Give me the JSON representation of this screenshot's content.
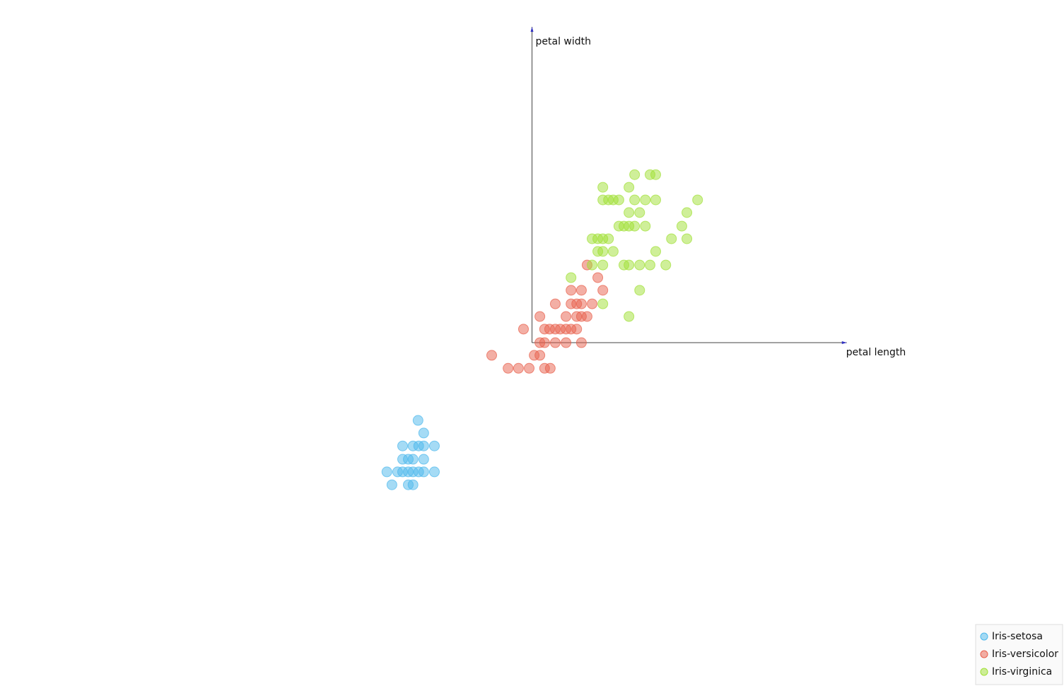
{
  "chart_data": {
    "type": "scatter",
    "xlim": [
      -1.69,
      1.69
    ],
    "ylim": [
      -1.087,
      1.085
    ],
    "anchors": [
      {
        "name": "petal length",
        "x": 1,
        "y": 0
      },
      {
        "name": "petal width",
        "x": 0,
        "y": 1
      }
    ],
    "legend": "bottom-right",
    "series": [
      {
        "name": "Iris-setosa",
        "color": "#4cb8ec",
        "x": [
          -0.362,
          -0.344,
          -0.411,
          -0.378,
          -0.36,
          -0.344,
          -0.31,
          -0.411,
          -0.393,
          -0.378,
          -0.344,
          -0.461,
          -0.427,
          -0.411,
          -0.393,
          -0.378,
          -0.36,
          -0.344,
          -0.31,
          -0.445,
          -0.393,
          -0.378
        ],
        "y": [
          -0.246,
          -0.286,
          -0.327,
          -0.327,
          -0.327,
          -0.327,
          -0.327,
          -0.369,
          -0.369,
          -0.369,
          -0.369,
          -0.409,
          -0.409,
          -0.409,
          -0.409,
          -0.409,
          -0.409,
          -0.409,
          -0.409,
          -0.45,
          -0.45,
          -0.45
        ]
      },
      {
        "name": "Iris-versicolor",
        "color": "#e8604c",
        "x": [
          0.175,
          0.209,
          0.124,
          0.157,
          0.225,
          0.074,
          0.124,
          0.142,
          0.157,
          0.191,
          0.025,
          0.108,
          0.142,
          0.157,
          0.175,
          -0.027,
          0.04,
          0.056,
          0.074,
          0.09,
          0.108,
          0.124,
          0.142,
          0.025,
          0.04,
          0.074,
          0.108,
          0.157,
          -0.128,
          0.007,
          0.025,
          -0.076,
          -0.043,
          -0.009,
          0.04,
          0.058
        ],
        "y": [
          0.246,
          0.206,
          0.166,
          0.166,
          0.166,
          0.123,
          0.123,
          0.123,
          0.123,
          0.123,
          0.083,
          0.083,
          0.083,
          0.083,
          0.083,
          0.043,
          0.043,
          0.043,
          0.043,
          0.043,
          0.043,
          0.043,
          0.043,
          0,
          0,
          0,
          0,
          0,
          -0.04,
          -0.04,
          -0.04,
          -0.081,
          -0.081,
          -0.081,
          -0.081,
          -0.081
        ]
      },
      {
        "name": "Iris-virginica",
        "color": "#a0e034",
        "x": [
          0.326,
          0.375,
          0.393,
          0.225,
          0.308,
          0.225,
          0.243,
          0.258,
          0.276,
          0.326,
          0.36,
          0.393,
          0.526,
          0.308,
          0.342,
          0.492,
          0.276,
          0.292,
          0.308,
          0.326,
          0.36,
          0.476,
          0.191,
          0.209,
          0.225,
          0.243,
          0.443,
          0.492,
          0.209,
          0.225,
          0.258,
          0.393,
          0.191,
          0.225,
          0.292,
          0.308,
          0.342,
          0.375,
          0.425,
          0.124,
          0.342,
          0.225,
          0.308
        ],
        "y": [
          0.532,
          0.532,
          0.532,
          0.492,
          0.492,
          0.452,
          0.452,
          0.452,
          0.452,
          0.452,
          0.452,
          0.452,
          0.452,
          0.412,
          0.412,
          0.412,
          0.369,
          0.369,
          0.369,
          0.369,
          0.369,
          0.369,
          0.329,
          0.329,
          0.329,
          0.329,
          0.329,
          0.329,
          0.289,
          0.289,
          0.289,
          0.289,
          0.246,
          0.246,
          0.246,
          0.246,
          0.246,
          0.246,
          0.246,
          0.206,
          0.166,
          0.123,
          0.083
        ]
      }
    ]
  }
}
